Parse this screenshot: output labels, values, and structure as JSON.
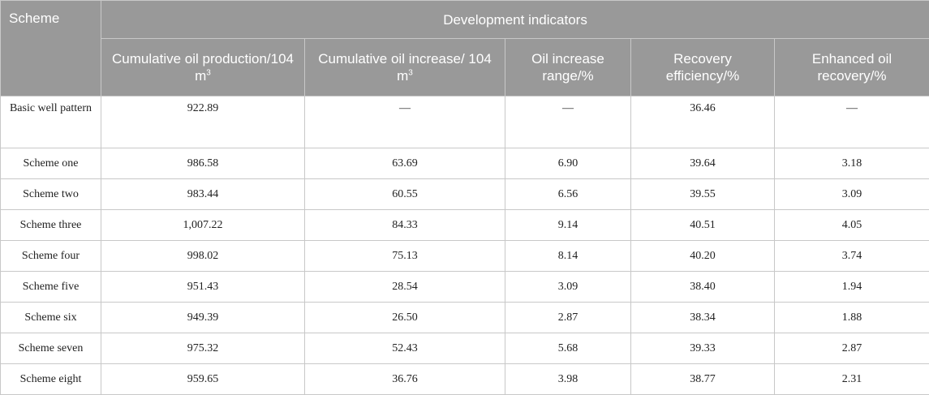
{
  "table": {
    "scheme_header": "Scheme",
    "group_header": "Development indicators",
    "columns": [
      {
        "label": "Cumulative oil production/104 m",
        "sup": "3"
      },
      {
        "label": "Cumulative oil increase/ 104 m",
        "sup": "3"
      },
      {
        "label": "Oil increase range/%",
        "sup": ""
      },
      {
        "label": "Recovery efficiency/%",
        "sup": ""
      },
      {
        "label": "Enhanced oil recovery/%",
        "sup": ""
      }
    ],
    "rows": [
      {
        "scheme": "Basic well pattern",
        "values": [
          "922.89",
          "—",
          "—",
          "36.46",
          "—"
        ]
      },
      {
        "scheme": "Scheme one",
        "values": [
          "986.58",
          "63.69",
          "6.90",
          "39.64",
          "3.18"
        ]
      },
      {
        "scheme": "Scheme two",
        "values": [
          "983.44",
          "60.55",
          "6.56",
          "39.55",
          "3.09"
        ]
      },
      {
        "scheme": "Scheme three",
        "values": [
          "1,007.22",
          "84.33",
          "9.14",
          "40.51",
          "4.05"
        ]
      },
      {
        "scheme": "Scheme four",
        "values": [
          "998.02",
          "75.13",
          "8.14",
          "40.20",
          "3.74"
        ]
      },
      {
        "scheme": "Scheme five",
        "values": [
          "951.43",
          "28.54",
          "3.09",
          "38.40",
          "1.94"
        ]
      },
      {
        "scheme": "Scheme six",
        "values": [
          "949.39",
          "26.50",
          "2.87",
          "38.34",
          "1.88"
        ]
      },
      {
        "scheme": "Scheme seven",
        "values": [
          "975.32",
          "52.43",
          "5.68",
          "39.33",
          "2.87"
        ]
      },
      {
        "scheme": "Scheme eight",
        "values": [
          "959.65",
          "36.76",
          "3.98",
          "38.77",
          "2.31"
        ]
      }
    ]
  }
}
